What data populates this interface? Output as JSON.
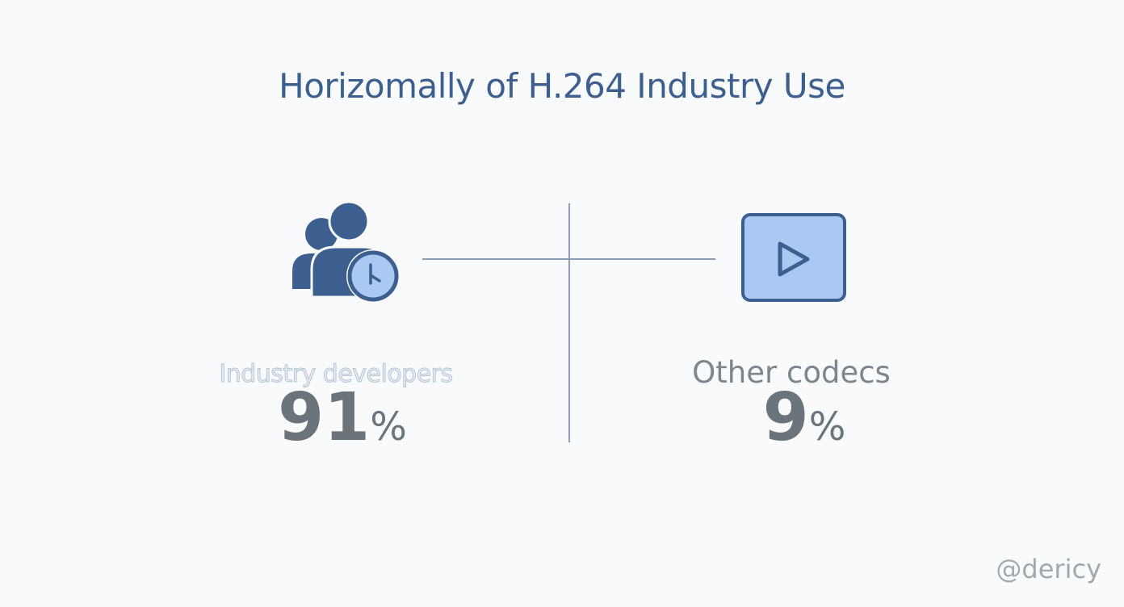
{
  "title": "Horizomally of H.264 Industry Use",
  "left": {
    "icon": "users-clock-icon",
    "label": "Industry developers",
    "value": "91",
    "unit": "%"
  },
  "right": {
    "icon": "video-play-icon",
    "label": "Other codecs",
    "value": "9",
    "unit": "%"
  },
  "watermark": "@dericy",
  "colors": {
    "primary": "#3d5f8f",
    "accent_light": "#a9c8f2",
    "text_gray": "#6b737b"
  }
}
